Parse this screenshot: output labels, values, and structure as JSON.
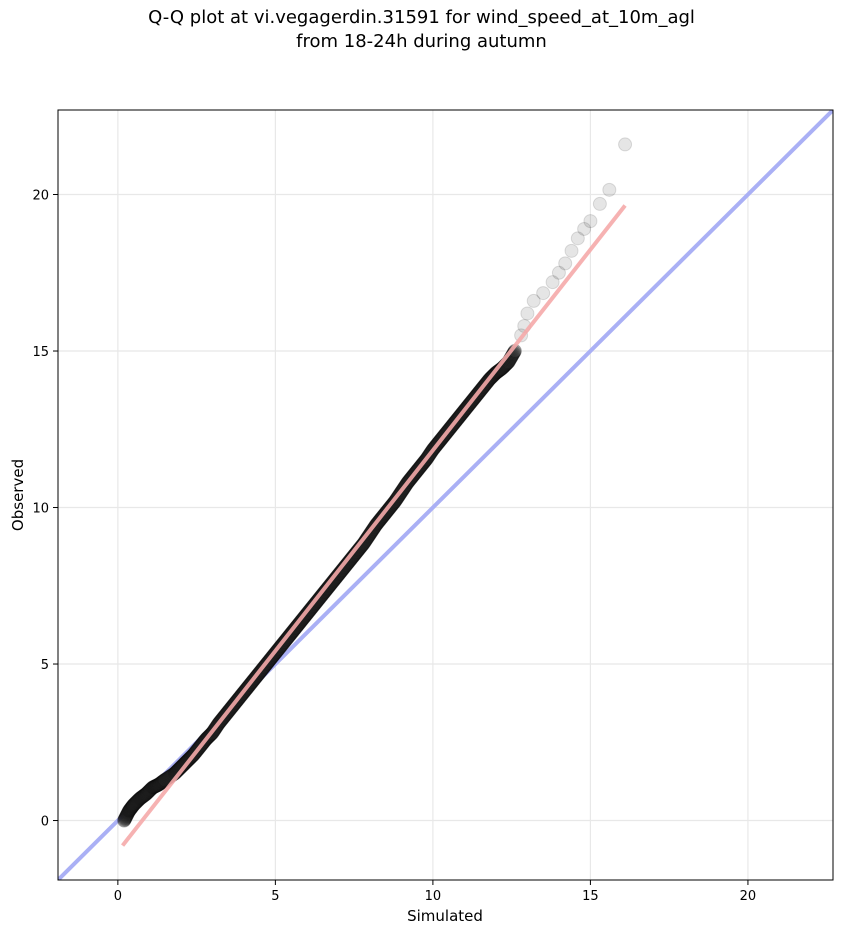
{
  "chart_data": {
    "type": "scatter",
    "title": "Q-Q plot at vi.vegagerdin.31591 for wind_speed_at_10m_agl",
    "subtitle": "from 18-24h during autumn",
    "xlabel": "Simulated",
    "ylabel": "Observed",
    "xlim": [
      -1.9,
      22.7
    ],
    "ylim": [
      -1.9,
      22.7
    ],
    "x_ticks": [
      0,
      5,
      10,
      15,
      20
    ],
    "y_ticks": [
      0,
      5,
      10,
      15,
      20
    ],
    "grid": true,
    "reference_line": {
      "name": "1:1",
      "color": "#aab0f5",
      "from": [
        -1.9,
        -1.9
      ],
      "to": [
        22.7,
        22.7
      ]
    },
    "fit_line": {
      "color": "#f5aaaa",
      "from": [
        0.15,
        -0.8
      ],
      "to": [
        16.1,
        19.65
      ]
    },
    "series": [
      {
        "points": [
          [
            0.2,
            0.0
          ],
          [
            0.35,
            0.3
          ],
          [
            0.5,
            0.5
          ],
          [
            0.7,
            0.7
          ],
          [
            0.9,
            0.85
          ],
          [
            1.1,
            1.05
          ],
          [
            1.3,
            1.15
          ],
          [
            1.5,
            1.3
          ],
          [
            1.8,
            1.5
          ],
          [
            2.0,
            1.7
          ],
          [
            2.2,
            1.9
          ],
          [
            2.4,
            2.1
          ],
          [
            2.6,
            2.35
          ],
          [
            2.8,
            2.6
          ],
          [
            3.0,
            2.8
          ],
          [
            3.2,
            3.1
          ],
          [
            3.4,
            3.35
          ],
          [
            3.6,
            3.6
          ],
          [
            3.8,
            3.85
          ],
          [
            4.0,
            4.1
          ],
          [
            4.2,
            4.35
          ],
          [
            4.4,
            4.6
          ],
          [
            4.6,
            4.85
          ],
          [
            4.8,
            5.1
          ],
          [
            5.0,
            5.35
          ],
          [
            5.2,
            5.6
          ],
          [
            5.4,
            5.85
          ],
          [
            5.6,
            6.1
          ],
          [
            5.8,
            6.35
          ],
          [
            6.0,
            6.6
          ],
          [
            6.2,
            6.85
          ],
          [
            6.4,
            7.1
          ],
          [
            6.6,
            7.35
          ],
          [
            6.8,
            7.6
          ],
          [
            7.0,
            7.85
          ],
          [
            7.2,
            8.1
          ],
          [
            7.4,
            8.35
          ],
          [
            7.6,
            8.6
          ],
          [
            7.8,
            8.85
          ],
          [
            8.0,
            9.15
          ],
          [
            8.2,
            9.45
          ],
          [
            8.4,
            9.7
          ],
          [
            8.6,
            9.95
          ],
          [
            8.8,
            10.2
          ],
          [
            9.0,
            10.5
          ],
          [
            9.2,
            10.8
          ],
          [
            9.4,
            11.05
          ],
          [
            9.6,
            11.3
          ],
          [
            9.8,
            11.55
          ],
          [
            10.0,
            11.85
          ],
          [
            10.2,
            12.1
          ],
          [
            10.4,
            12.35
          ],
          [
            10.6,
            12.6
          ],
          [
            10.8,
            12.85
          ],
          [
            11.0,
            13.1
          ],
          [
            11.2,
            13.35
          ],
          [
            11.4,
            13.6
          ],
          [
            11.6,
            13.85
          ],
          [
            11.8,
            14.1
          ],
          [
            12.0,
            14.3
          ],
          [
            12.2,
            14.45
          ],
          [
            12.4,
            14.65
          ],
          [
            12.6,
            15.0
          ],
          [
            12.8,
            15.5
          ],
          [
            12.9,
            15.8
          ],
          [
            13.0,
            16.2
          ],
          [
            13.2,
            16.6
          ],
          [
            13.5,
            16.85
          ],
          [
            13.8,
            17.2
          ],
          [
            14.0,
            17.5
          ],
          [
            14.2,
            17.8
          ],
          [
            14.4,
            18.2
          ],
          [
            14.6,
            18.6
          ],
          [
            14.8,
            18.9
          ],
          [
            15.0,
            19.15
          ],
          [
            15.3,
            19.7
          ],
          [
            15.6,
            20.15
          ],
          [
            16.1,
            21.6
          ]
        ]
      }
    ]
  }
}
